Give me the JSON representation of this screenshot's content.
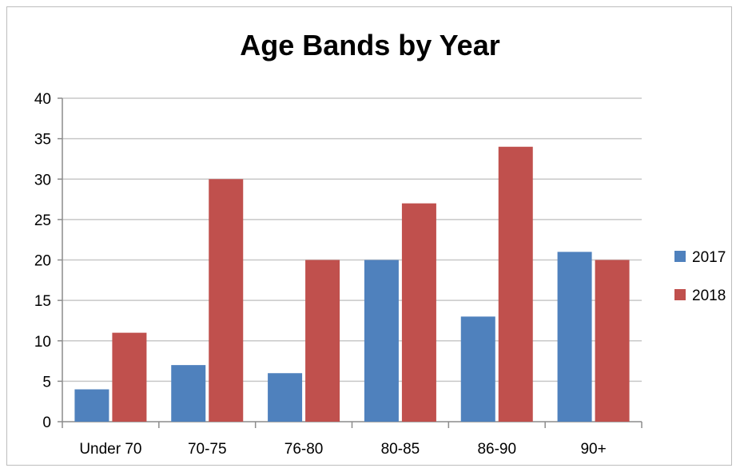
{
  "chart_data": {
    "type": "bar",
    "title": "Age Bands by Year",
    "xlabel": "",
    "ylabel": "",
    "categories": [
      "Under 70",
      "70-75",
      "76-80",
      "80-85",
      "86-90",
      "90+"
    ],
    "series": [
      {
        "name": "2017",
        "values": [
          4,
          7,
          6,
          20,
          13,
          21
        ],
        "color": "#4f81bd"
      },
      {
        "name": "2018",
        "values": [
          11,
          30,
          20,
          27,
          34,
          20
        ],
        "color": "#c0504d"
      }
    ],
    "ylim": [
      0,
      40
    ],
    "yticks": [
      0,
      5,
      10,
      15,
      20,
      25,
      30,
      35,
      40
    ],
    "grid": true,
    "legend_position": "right"
  }
}
